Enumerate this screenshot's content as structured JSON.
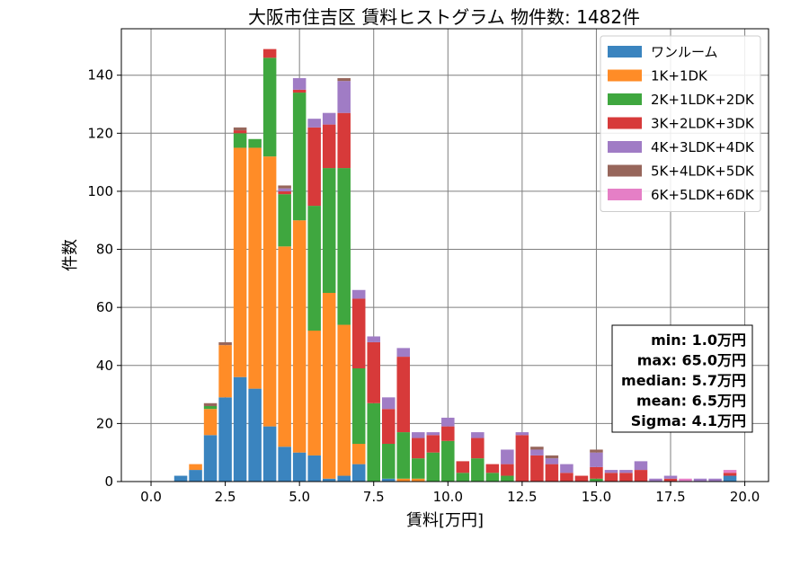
{
  "chart_data": {
    "type": "bar",
    "stacked": true,
    "title": "大阪市住吉区 賃料ヒストグラム 物件数: 1482件",
    "xlabel": "賃料[万円]",
    "ylabel": "件数",
    "xlim": [
      -1.0,
      20.8
    ],
    "ylim": [
      0,
      156
    ],
    "xticks": [
      0.0,
      2.5,
      5.0,
      7.5,
      10.0,
      12.5,
      15.0,
      17.5,
      20.0
    ],
    "xtick_labels": [
      "0.0",
      "2.5",
      "5.0",
      "7.5",
      "10.0",
      "12.5",
      "15.0",
      "17.5",
      "20.0"
    ],
    "yticks": [
      0,
      20,
      40,
      60,
      80,
      100,
      120,
      140
    ],
    "ytick_labels": [
      "0",
      "20",
      "40",
      "60",
      "80",
      "100",
      "120",
      "140"
    ],
    "grid": true,
    "legend_position": "top-right",
    "bin_width": 0.5,
    "x": [
      1.0,
      1.5,
      2.0,
      2.5,
      3.0,
      3.5,
      4.0,
      4.5,
      5.0,
      5.5,
      6.0,
      6.5,
      7.0,
      7.5,
      8.0,
      8.5,
      9.0,
      9.5,
      10.0,
      10.5,
      11.0,
      11.5,
      12.0,
      12.5,
      13.0,
      13.5,
      14.0,
      14.5,
      15.0,
      15.5,
      16.0,
      16.5,
      17.0,
      17.5,
      18.0,
      18.5,
      19.0,
      19.5
    ],
    "series": [
      {
        "name": "ワンルーム",
        "color": "#3a84bf",
        "values": [
          2,
          4,
          16,
          29,
          36,
          32,
          19,
          12,
          10,
          9,
          1,
          2,
          6,
          0,
          1,
          0,
          0,
          0,
          0,
          0,
          0,
          0,
          0,
          0,
          0,
          0,
          0,
          0,
          0,
          0,
          0,
          0,
          0,
          0,
          0,
          0,
          0,
          2
        ]
      },
      {
        "name": "1K+1DK",
        "color": "#ff8c27",
        "values": [
          0,
          2,
          9,
          18,
          79,
          83,
          93,
          69,
          80,
          43,
          64,
          52,
          7,
          0,
          0,
          1,
          1,
          0,
          0,
          0,
          0,
          0,
          0,
          0,
          0,
          0,
          0,
          0,
          0,
          0,
          0,
          0,
          0,
          0,
          0,
          0,
          0,
          0
        ]
      },
      {
        "name": "2K+1LDK+2DK",
        "color": "#3fa73f",
        "values": [
          0,
          0,
          1,
          0,
          5,
          3,
          34,
          18,
          44,
          43,
          43,
          54,
          26,
          27,
          12,
          16,
          7,
          10,
          14,
          3,
          8,
          3,
          2,
          0,
          0,
          0,
          0,
          0,
          1,
          0,
          0,
          0,
          0,
          0,
          0,
          0,
          0,
          0
        ]
      },
      {
        "name": "3K+2LDK+3DK",
        "color": "#d73a3a",
        "values": [
          0,
          0,
          0,
          0,
          1,
          0,
          3,
          1,
          1,
          27,
          15,
          19,
          24,
          21,
          12,
          26,
          7,
          6,
          5,
          4,
          7,
          3,
          4,
          16,
          9,
          6,
          3,
          2,
          4,
          3,
          3,
          4,
          0,
          1,
          0,
          0,
          0,
          1
        ]
      },
      {
        "name": "4K+3LDK+4DK",
        "color": "#a07cc5",
        "values": [
          0,
          0,
          0,
          0,
          0,
          0,
          0,
          1,
          4,
          3,
          4,
          11,
          3,
          2,
          4,
          3,
          2,
          1,
          3,
          0,
          2,
          0,
          5,
          1,
          2,
          2,
          3,
          0,
          5,
          1,
          1,
          3,
          1,
          1,
          0,
          1,
          1,
          0
        ]
      },
      {
        "name": "5K+4LDK+5DK",
        "color": "#97665b",
        "values": [
          0,
          0,
          1,
          1,
          1,
          0,
          0,
          1,
          0,
          0,
          0,
          1,
          0,
          0,
          0,
          0,
          0,
          0,
          0,
          0,
          0,
          0,
          0,
          0,
          1,
          1,
          0,
          0,
          1,
          0,
          0,
          0,
          0,
          0,
          0,
          0,
          0,
          0
        ]
      },
      {
        "name": "6K+5LDK+6DK",
        "color": "#e57fc6",
        "values": [
          0,
          0,
          0,
          0,
          0,
          0,
          0,
          0,
          0,
          0,
          0,
          0,
          0,
          0,
          0,
          0,
          0,
          0,
          0,
          0,
          0,
          0,
          0,
          0,
          0,
          0,
          0,
          0,
          0,
          0,
          0,
          0,
          0,
          0,
          1,
          0,
          0,
          1
        ]
      }
    ],
    "annotations": [
      "min: 1.0万円",
      "max: 65.0万円",
      "median: 5.7万円",
      "mean: 6.5万円",
      "Sigma: 4.1万円"
    ]
  }
}
